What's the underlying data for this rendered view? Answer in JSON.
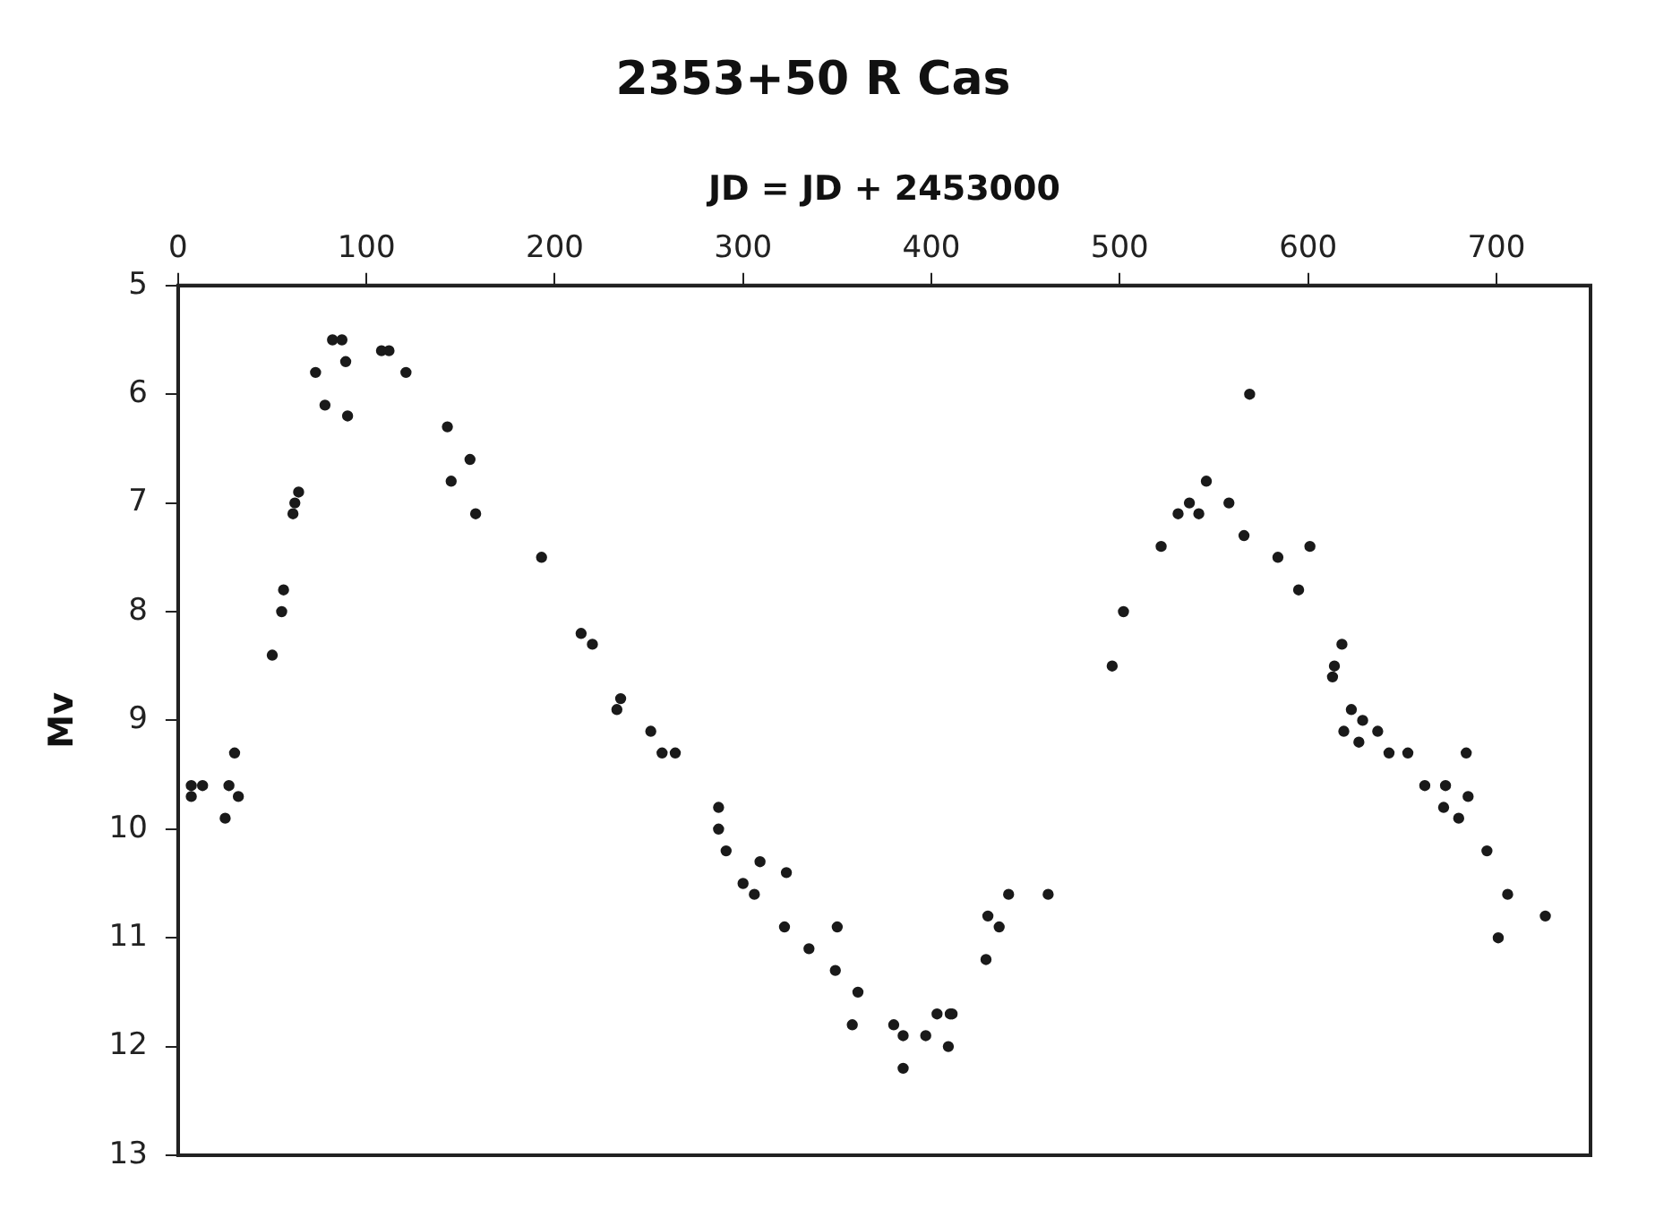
{
  "chart_data": {
    "type": "scatter",
    "title": "2353+50 R Cas",
    "xlabel": "JD = JD + 2453000",
    "ylabel": "Mv",
    "x": [
      7,
      7,
      13,
      25,
      27,
      30,
      32,
      50,
      55,
      56,
      61,
      62,
      64,
      73,
      78,
      82,
      87,
      89,
      90,
      108,
      112,
      121,
      143,
      145,
      155,
      158,
      193,
      214,
      220,
      233,
      235,
      251,
      257,
      264,
      287,
      287,
      291,
      309,
      300,
      306,
      323,
      322,
      335,
      350,
      349,
      361,
      358,
      380,
      385,
      385,
      397,
      403,
      410,
      411,
      409,
      429,
      430,
      436,
      441,
      462,
      496,
      502,
      522,
      531,
      537,
      542,
      546,
      558,
      566,
      569,
      584,
      595,
      601,
      618,
      614,
      613,
      623,
      619,
      629,
      627,
      637,
      643,
      653,
      684,
      662,
      673,
      672,
      680,
      685,
      695,
      706,
      701,
      726
    ],
    "values": [
      9.6,
      9.7,
      9.6,
      9.9,
      9.6,
      9.3,
      9.7,
      8.4,
      8.0,
      7.8,
      7.1,
      7.0,
      6.9,
      5.8,
      6.1,
      5.5,
      5.5,
      5.7,
      6.2,
      5.6,
      5.6,
      5.8,
      6.3,
      6.8,
      6.6,
      7.1,
      7.5,
      8.2,
      8.3,
      8.9,
      8.8,
      9.1,
      9.3,
      9.3,
      9.8,
      10.0,
      10.2,
      10.3,
      10.5,
      10.6,
      10.4,
      10.9,
      11.1,
      10.9,
      11.3,
      11.5,
      11.8,
      11.8,
      11.9,
      12.2,
      11.9,
      11.7,
      11.7,
      11.7,
      12.0,
      11.2,
      10.8,
      10.9,
      10.6,
      10.6,
      8.5,
      8.0,
      7.4,
      7.1,
      7.0,
      7.1,
      6.8,
      7.0,
      7.3,
      6.0,
      7.5,
      7.8,
      7.4,
      8.3,
      8.5,
      8.6,
      8.9,
      9.1,
      9.0,
      9.2,
      9.1,
      9.3,
      9.3,
      9.3,
      9.6,
      9.6,
      9.8,
      9.9,
      9.7,
      10.2,
      10.6,
      11.0,
      10.8
    ],
    "color": "#1a1a1a",
    "marker": "circle",
    "xlim": [
      0,
      750
    ],
    "xticks": [
      0,
      100,
      200,
      300,
      400,
      500,
      600,
      700
    ],
    "ylim": [
      13,
      5
    ],
    "yticks": [
      5,
      6,
      7,
      8,
      9,
      10,
      11,
      12,
      13
    ],
    "grid": false,
    "legend": false
  }
}
